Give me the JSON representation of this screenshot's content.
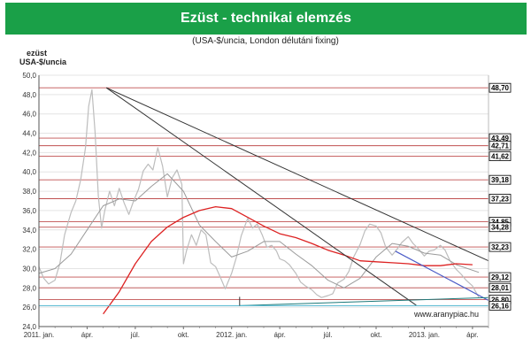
{
  "title": "Ezüst - technikai elemzés",
  "subtitle": "(USA-$/uncia, London délutáni fixing)",
  "ylabel_line1": "ezüst",
  "ylabel_line2": "USA-$/uncia",
  "watermark": "www.aranypiac.hu",
  "colors": {
    "title_bg": "#1aa048",
    "price": "#bdbdbd",
    "ma_short": "#9a9a9a",
    "ma_long": "#dd2222",
    "level_line": "#c05050",
    "trend_line": "#333333",
    "channel_line": "#4a5bc7",
    "support_line": "#1d7a7a",
    "cyan_line": "#55c8e0"
  },
  "chart_data": {
    "type": "line",
    "ylim": [
      24.0,
      50.0
    ],
    "yticks": [
      "24,0",
      "26,0",
      "28,0",
      "30,0",
      "32,0",
      "34,0",
      "36,0",
      "38,0",
      "40,0",
      "42,0",
      "44,0",
      "46,0",
      "48,0",
      "50,0"
    ],
    "xlim": [
      0,
      28
    ],
    "xticks": [
      {
        "x": 0,
        "label": "2011. jan."
      },
      {
        "x": 3,
        "label": "ápr."
      },
      {
        "x": 6,
        "label": "júl."
      },
      {
        "x": 9,
        "label": "okt."
      },
      {
        "x": 12,
        "label": "2012. jan."
      },
      {
        "x": 15,
        "label": "ápr."
      },
      {
        "x": 18,
        "label": "júl."
      },
      {
        "x": 21,
        "label": "okt."
      },
      {
        "x": 24,
        "label": "2013. jan."
      },
      {
        "x": 27,
        "label": "ápr."
      }
    ],
    "levels": [
      {
        "value": 48.7,
        "label": "48,70"
      },
      {
        "value": 43.49,
        "label": "43,49"
      },
      {
        "value": 42.71,
        "label": "42,71"
      },
      {
        "value": 41.62,
        "label": "41,62"
      },
      {
        "value": 39.18,
        "label": "39,18"
      },
      {
        "value": 37.23,
        "label": "37,23"
      },
      {
        "value": 34.85,
        "label": "34,85"
      },
      {
        "value": 34.28,
        "label": "34,28"
      },
      {
        "value": 32.23,
        "label": "32,23"
      },
      {
        "value": 29.12,
        "label": "29,12"
      },
      {
        "value": 28.01,
        "label": "28,01"
      },
      {
        "value": 26.8,
        "label": "26,80"
      },
      {
        "value": 26.16,
        "label": "26,16"
      }
    ],
    "series": [
      {
        "key": "price",
        "x": [
          0,
          0.3,
          0.6,
          1,
          1.3,
          1.6,
          2,
          2.3,
          2.6,
          2.9,
          3.1,
          3.3,
          3.5,
          3.7,
          3.9,
          4.1,
          4.4,
          4.7,
          5,
          5.3,
          5.6,
          5.9,
          6.2,
          6.5,
          6.8,
          7.1,
          7.4,
          7.7,
          8,
          8.3,
          8.6,
          8.9,
          9.0,
          9.2,
          9.5,
          9.8,
          10.1,
          10.4,
          10.7,
          11,
          11.3,
          11.6,
          12,
          12.3,
          12.6,
          13,
          13.3,
          13.6,
          13.9,
          14.2,
          14.5,
          14.8,
          15,
          15.3,
          15.6,
          16,
          16.3,
          16.6,
          17,
          17.3,
          17.6,
          18,
          18.3,
          18.6,
          19,
          19.3,
          19.6,
          20,
          20.3,
          20.6,
          21,
          21.3,
          21.6,
          22,
          22.3,
          22.6,
          23,
          23.3,
          23.6,
          24,
          24.3,
          24.6,
          25,
          25.3,
          25.6,
          26,
          26.3,
          26.6,
          27,
          27.2,
          27.4
        ],
        "y": [
          30.2,
          29.0,
          28.4,
          28.8,
          30.5,
          33.5,
          35.8,
          37.0,
          39.2,
          42.5,
          46.8,
          48.5,
          44.0,
          37.5,
          34.2,
          36.0,
          38.0,
          36.5,
          38.3,
          36.8,
          35.6,
          37.0,
          38.2,
          40.1,
          40.8,
          40.2,
          42.5,
          40.6,
          37.4,
          39.4,
          40.2,
          38.7,
          30.5,
          31.9,
          33.5,
          32.4,
          34.0,
          33.5,
          30.6,
          30.2,
          29.1,
          27.9,
          29.5,
          31.2,
          33.4,
          35.2,
          34.2,
          34.6,
          33.5,
          32.2,
          32.4,
          31.8,
          31.0,
          30.8,
          30.4,
          29.5,
          28.6,
          28.2,
          27.8,
          27.3,
          27.0,
          27.2,
          27.4,
          28.5,
          28.9,
          29.7,
          31.2,
          32.5,
          33.9,
          34.6,
          34.4,
          33.7,
          32.2,
          31.4,
          32.0,
          32.7,
          33.3,
          32.6,
          32.1,
          31.3,
          31.8,
          31.9,
          32.4,
          31.9,
          30.8,
          29.9,
          29.4,
          28.8,
          28.2,
          27.6,
          27.0
        ]
      },
      {
        "key": "ma_short",
        "x": [
          0,
          1,
          2,
          3,
          4,
          5,
          6,
          7,
          8,
          9,
          10,
          11,
          12,
          13,
          14,
          15,
          16,
          17,
          18,
          19,
          20,
          21,
          22,
          23,
          24,
          25,
          26,
          27.4
        ],
        "y": [
          29.5,
          30.0,
          31.5,
          34.0,
          36.5,
          37.2,
          37.0,
          38.5,
          39.8,
          38.0,
          34.5,
          32.8,
          31.2,
          31.8,
          32.8,
          32.8,
          31.5,
          30.3,
          28.8,
          28.0,
          29.0,
          31.2,
          32.6,
          32.3,
          31.6,
          31.4,
          30.4,
          29.6
        ]
      },
      {
        "key": "ma_long",
        "x": [
          4,
          5,
          6,
          7,
          8,
          9,
          10,
          11,
          12,
          13,
          14,
          15,
          16,
          17,
          18,
          19,
          20,
          21,
          22,
          23,
          24,
          25,
          26,
          27
        ],
        "y": [
          25.3,
          27.6,
          30.5,
          32.8,
          34.3,
          35.3,
          36.0,
          36.4,
          36.2,
          35.3,
          34.4,
          33.6,
          33.2,
          32.6,
          31.9,
          31.4,
          30.8,
          30.7,
          30.6,
          30.5,
          30.3,
          30.3,
          30.5,
          30.4
        ]
      }
    ],
    "trendlines": [
      {
        "kind": "trend",
        "x1": 4.2,
        "y1": 48.7,
        "x2": 28.0,
        "y2": 30.8
      },
      {
        "kind": "trend",
        "x1": 4.2,
        "y1": 48.7,
        "x2": 23.5,
        "y2": 26.2
      },
      {
        "kind": "channel",
        "x1": 22.2,
        "y1": 31.8,
        "x2": 28.0,
        "y2": 26.7
      },
      {
        "kind": "support",
        "x1": 12.5,
        "y1": 26.16,
        "x2": 28.0,
        "y2": 27.0
      },
      {
        "kind": "cyan",
        "x1": 0,
        "y1": 26.16,
        "x2": 28.0,
        "y2": 26.16
      }
    ]
  }
}
